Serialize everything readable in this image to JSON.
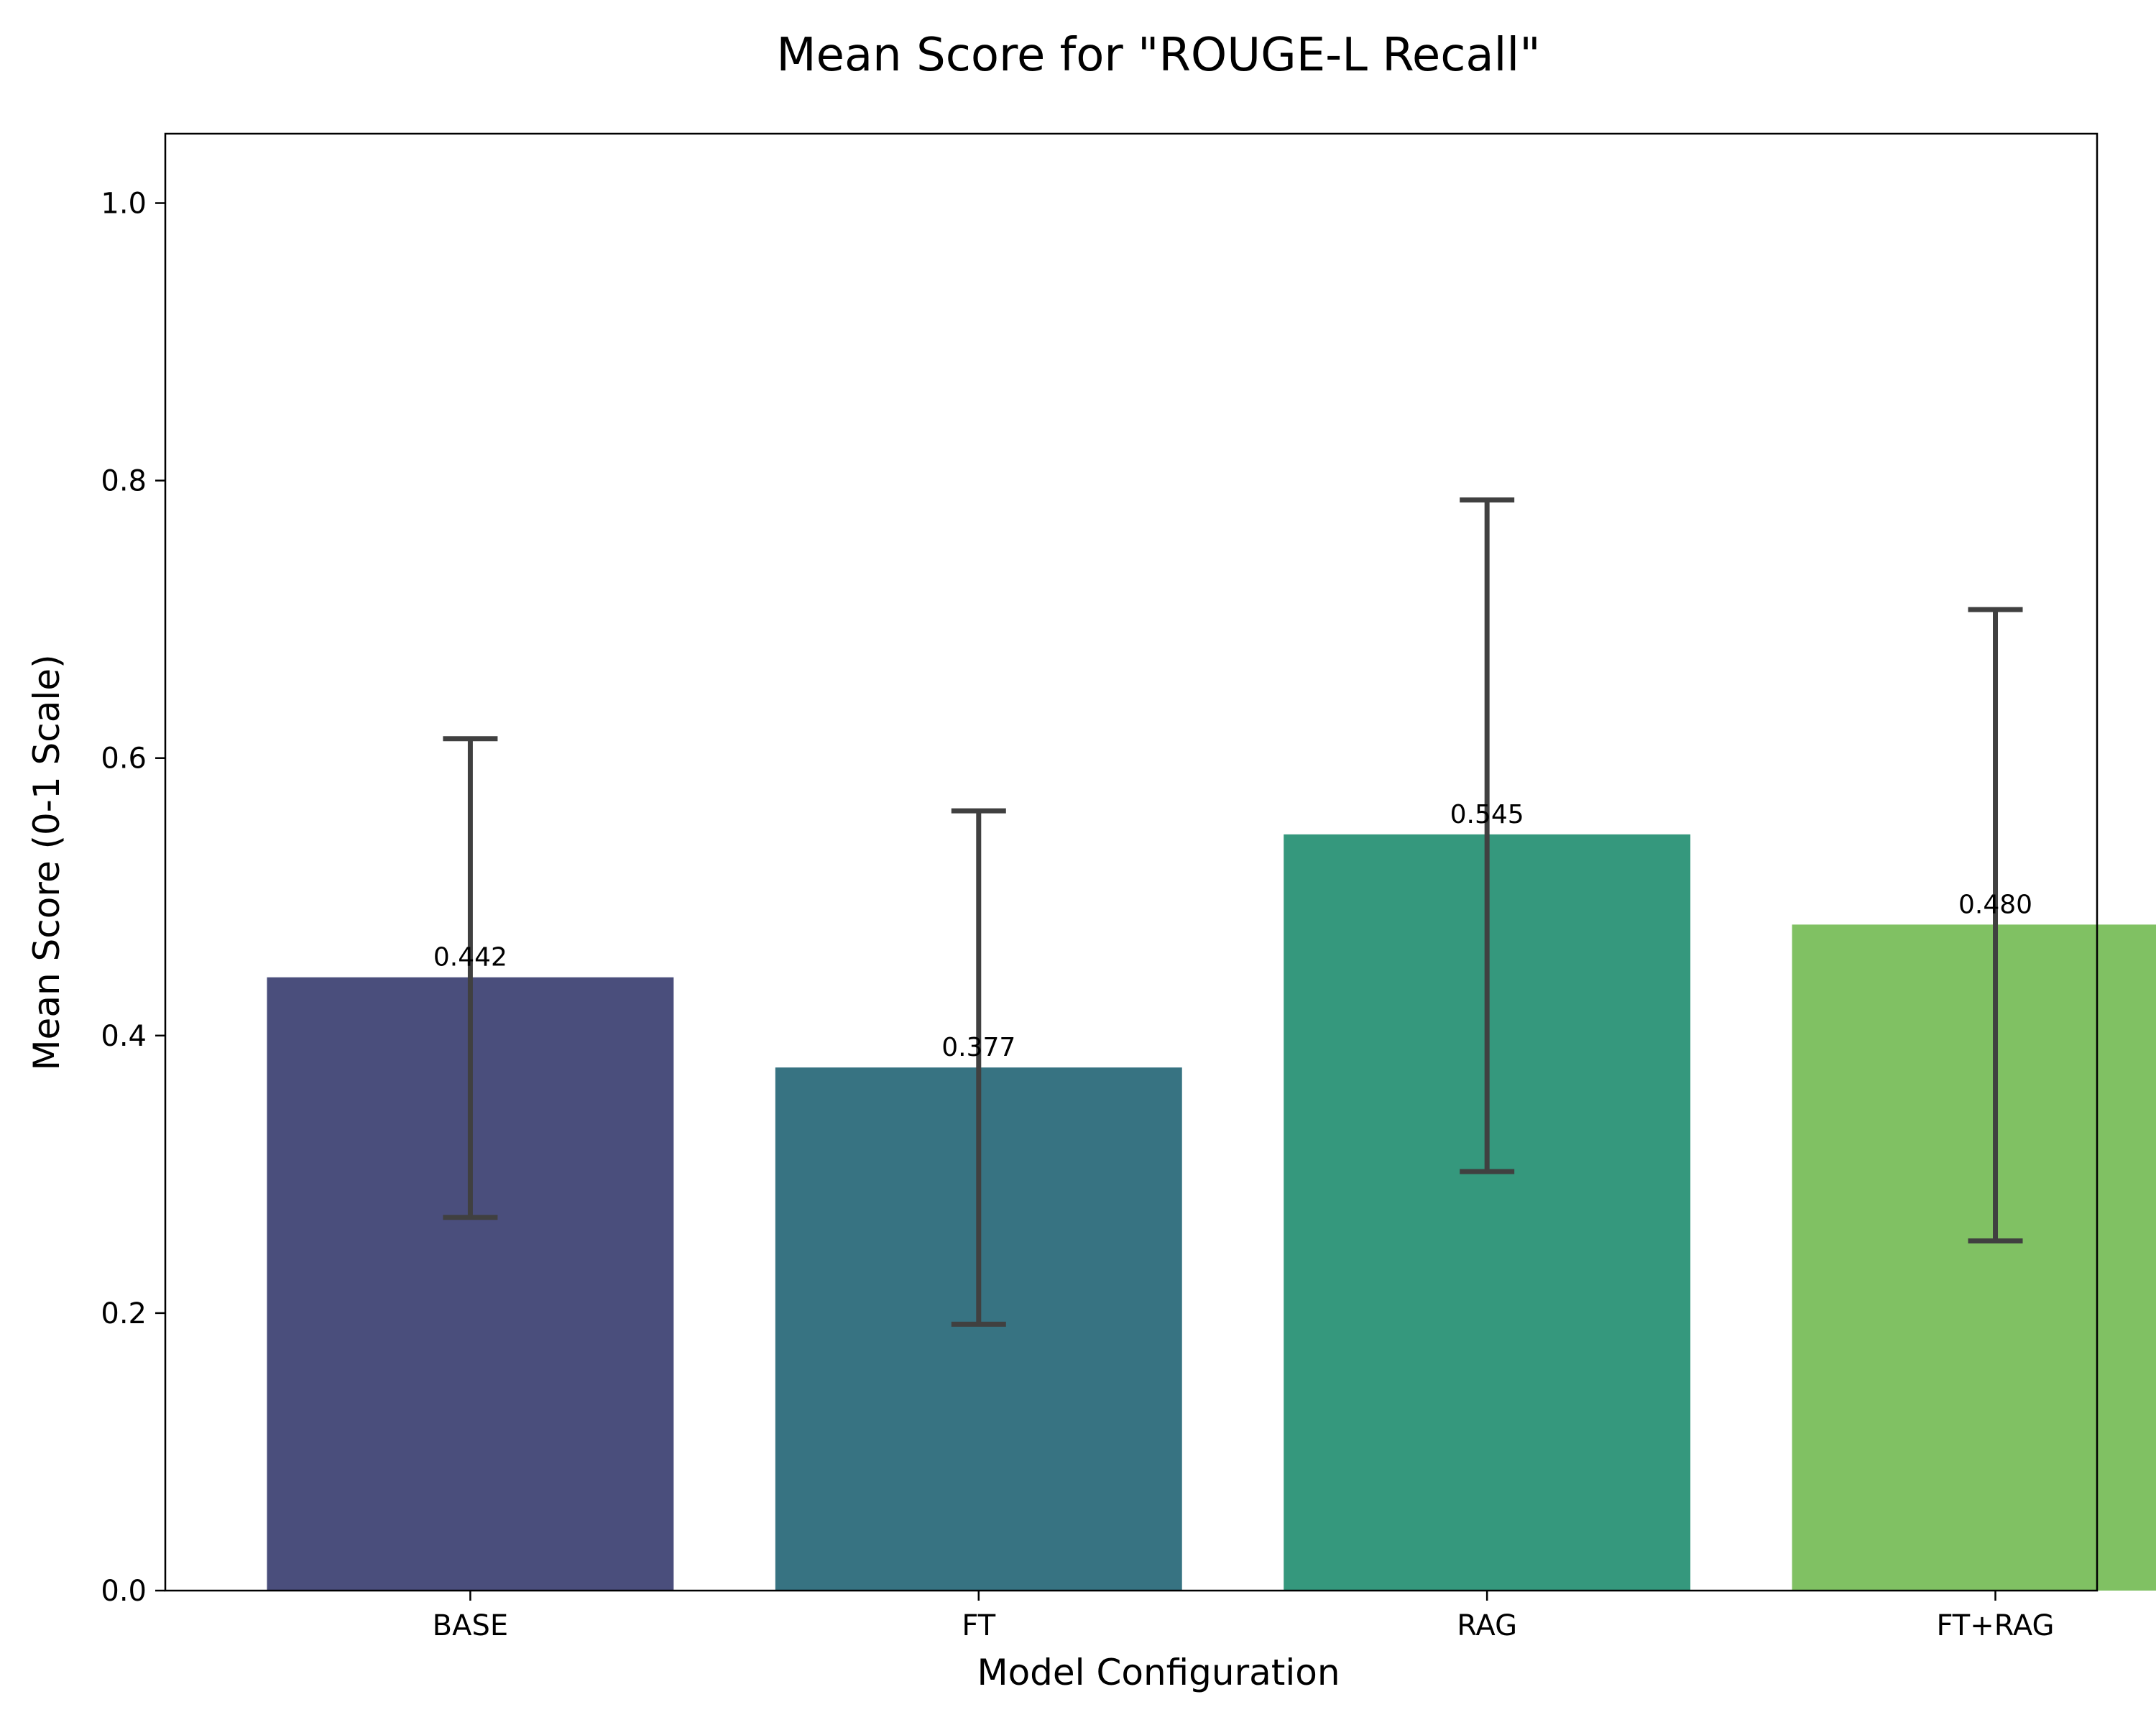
{
  "chart_data": {
    "type": "bar",
    "title": "Mean Score for \"ROUGE-L Recall\"",
    "xlabel": "Model Configuration",
    "ylabel": "Mean Score (0-1 Scale)",
    "categories": [
      "BASE",
      "FT",
      "RAG",
      "FT+RAG"
    ],
    "values": [
      0.442,
      0.377,
      0.545,
      0.48
    ],
    "value_labels": [
      "0.442",
      "0.377",
      "0.545",
      "0.480"
    ],
    "error_low": [
      0.269,
      0.192,
      0.302,
      0.252
    ],
    "error_high": [
      0.614,
      0.562,
      0.786,
      0.707
    ],
    "colors": [
      "#4a4e7c",
      "#377382",
      "#35987d",
      "#80c163"
    ],
    "error_color": "#404040",
    "ylim": [
      0,
      1.05
    ],
    "yticks": [
      0.0,
      0.2,
      0.4,
      0.6,
      0.8,
      1.0
    ],
    "ytick_labels": [
      "0.0",
      "0.2",
      "0.4",
      "0.6",
      "0.8",
      "1.0"
    ],
    "grid": false,
    "legend": "none"
  }
}
